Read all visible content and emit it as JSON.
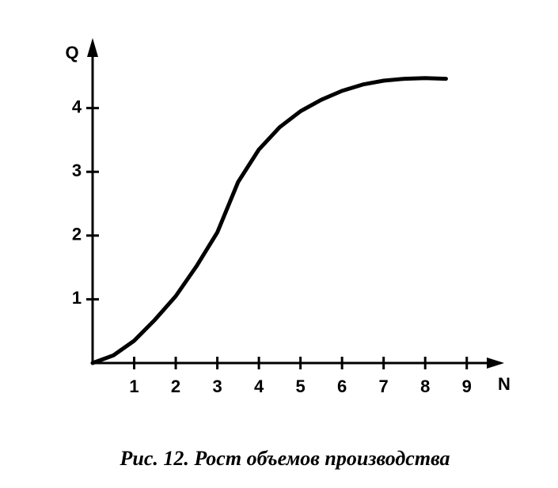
{
  "chart_data": {
    "type": "line",
    "title": "Рис. 12. Рост объемов производства",
    "x_label": "N",
    "y_label": "Q",
    "x": [
      0,
      0.5,
      1,
      1.5,
      2,
      2.5,
      3,
      3.5,
      4,
      4.5,
      5,
      5.5,
      6,
      6.5,
      7,
      7.5,
      8,
      8.5
    ],
    "series": [
      {
        "color": "#000000",
        "values": [
          0,
          0.12,
          0.35,
          0.68,
          1.05,
          1.52,
          2.05,
          2.84,
          3.35,
          3.7,
          3.95,
          4.13,
          4.27,
          4.37,
          4.43,
          4.46,
          4.47,
          4.46
        ]
      }
    ],
    "xlim": [
      0,
      9.9
    ],
    "ylim": [
      0,
      5.1
    ],
    "xticks": [
      1,
      2,
      3,
      4,
      5,
      6,
      7,
      8,
      9
    ],
    "yticks": [
      1,
      2,
      3,
      4
    ],
    "grid": false
  }
}
